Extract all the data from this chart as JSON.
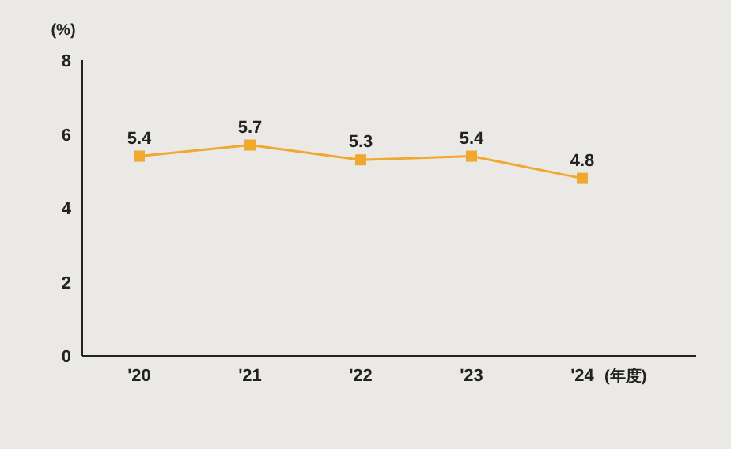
{
  "chart_data": {
    "type": "line",
    "ylabel": "(%)",
    "xlabel": "(年度)",
    "categories": [
      "'20",
      "'21",
      "'22",
      "'23",
      "'24"
    ],
    "series": [
      {
        "color": "#f0a830",
        "values": [
          5.4,
          5.7,
          5.3,
          5.4,
          4.8
        ]
      }
    ],
    "ylim": [
      0,
      8
    ],
    "yticks": [
      0,
      2,
      4,
      6,
      8
    ],
    "marker": "square",
    "line_style": "solid",
    "data_labels": true,
    "grid": false
  }
}
